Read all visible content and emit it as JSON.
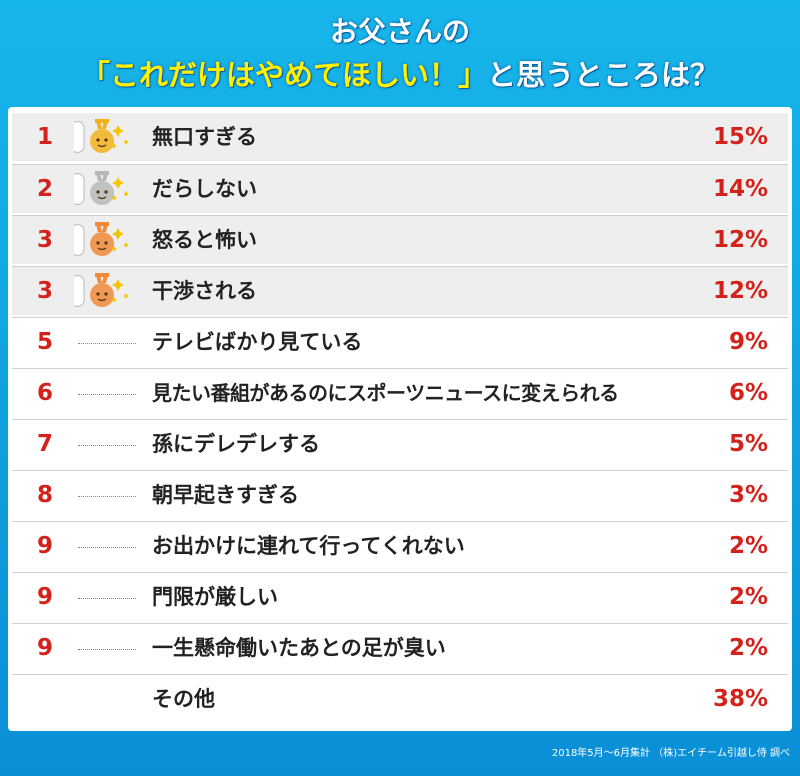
{
  "title": {
    "line1": "お父さんの",
    "line2_highlight": "「これだけはやめてほしい！」",
    "line2_rest": "と思うところは？"
  },
  "chart_data": {
    "type": "table",
    "rows": [
      {
        "rank": "1",
        "label": "無口すぎる",
        "value": "15%",
        "medal": "gold"
      },
      {
        "rank": "2",
        "label": "だらしない",
        "value": "14%",
        "medal": "silver"
      },
      {
        "rank": "3",
        "label": "怒ると怖い",
        "value": "12%",
        "medal": "bronze"
      },
      {
        "rank": "3",
        "label": "干渉される",
        "value": "12%",
        "medal": "bronze"
      },
      {
        "rank": "5",
        "label": "テレビばかり見ている",
        "value": "9%",
        "medal": ""
      },
      {
        "rank": "6",
        "label": "見たい番組があるのにスポーツニュースに変えられる",
        "value": "6%",
        "medal": ""
      },
      {
        "rank": "7",
        "label": "孫にデレデレする",
        "value": "5%",
        "medal": ""
      },
      {
        "rank": "8",
        "label": "朝早起きすぎる",
        "value": "3%",
        "medal": ""
      },
      {
        "rank": "9",
        "label": "お出かけに連れて行ってくれない",
        "value": "2%",
        "medal": ""
      },
      {
        "rank": "9",
        "label": "門限が厳しい",
        "value": "2%",
        "medal": ""
      },
      {
        "rank": "9",
        "label": "一生懸命働いたあとの足が臭い",
        "value": "2%",
        "medal": ""
      },
      {
        "rank": "",
        "label": "その他",
        "value": "38%",
        "medal": ""
      }
    ]
  },
  "footer": "2018年5月〜6月集計 （株)エイチーム引越し侍 調べ",
  "colors": {
    "rank": "#d3221b",
    "gold": "#f2b11e",
    "silver": "#b8b8b8",
    "bronze": "#f08a3a",
    "background": "#17b6ea"
  }
}
